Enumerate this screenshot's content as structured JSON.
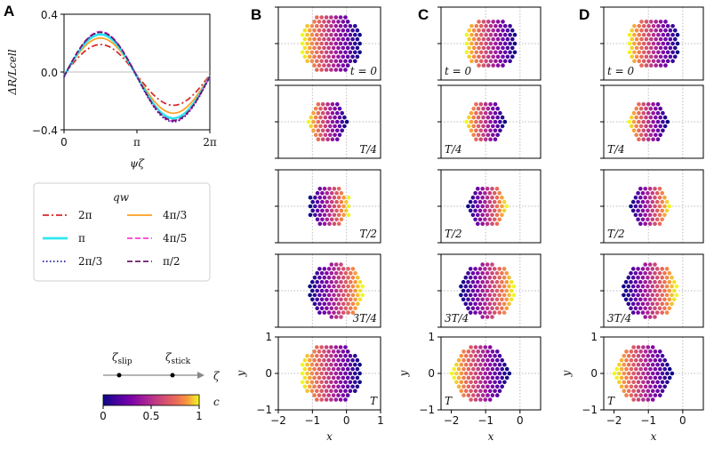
{
  "chart_data": [
    {
      "panel": "A",
      "type": "line",
      "ylabel": "ΔR/Lcell",
      "xlabel": "ψζ",
      "xlim": [
        0,
        6.2832
      ],
      "ylim": [
        -0.4,
        0.4
      ],
      "xticks": [
        "0",
        "π",
        "2π"
      ],
      "yticks": [
        "0.4",
        "0.0",
        "−0.4"
      ],
      "legend_title": "qw",
      "series": [
        {
          "name": "2π",
          "amplitude": 0.21,
          "offset": -0.02,
          "color": "#d62728",
          "style": "dashdot"
        },
        {
          "name": "4π/3",
          "amplitude": 0.26,
          "offset": -0.025,
          "color": "#ff9f1c",
          "style": "solid"
        },
        {
          "name": "π",
          "amplitude": 0.29,
          "offset": -0.03,
          "color": "#2ee6f0",
          "style": "solid"
        },
        {
          "name": "4π/5",
          "amplitude": 0.31,
          "offset": -0.03,
          "color": "#ff3bd5",
          "style": "dashed"
        },
        {
          "name": "2π/3",
          "amplitude": 0.31,
          "offset": -0.035,
          "color": "#1a1aa6",
          "style": "dotted"
        },
        {
          "name": "π/2",
          "amplitude": 0.305,
          "offset": -0.03,
          "color": "#6a1b6a",
          "style": "dashed"
        }
      ]
    },
    {
      "panel": "colorbar",
      "type": "heatmap",
      "label": "c",
      "ticks": [
        "0",
        "0.5",
        "1"
      ],
      "range": [
        0,
        1
      ],
      "colormap": "plasma"
    }
  ],
  "panel_letters": {
    "a": "A",
    "b": "B",
    "c": "C",
    "d": "D"
  },
  "zeta_axis": {
    "slip": "slip",
    "stick": "stick",
    "symbol": "ζ"
  },
  "time_labels": [
    "t = 0",
    "T/4",
    "T/2",
    "3T/4",
    "T"
  ],
  "grid_axes": {
    "ylabel": "y",
    "xlabel": "x",
    "yticks": [
      "1",
      "0",
      "−1"
    ],
    "xticks_B": [
      "−2",
      "−1",
      "0",
      "1"
    ],
    "xticks_CD": [
      "−2",
      "−1",
      "0"
    ]
  }
}
